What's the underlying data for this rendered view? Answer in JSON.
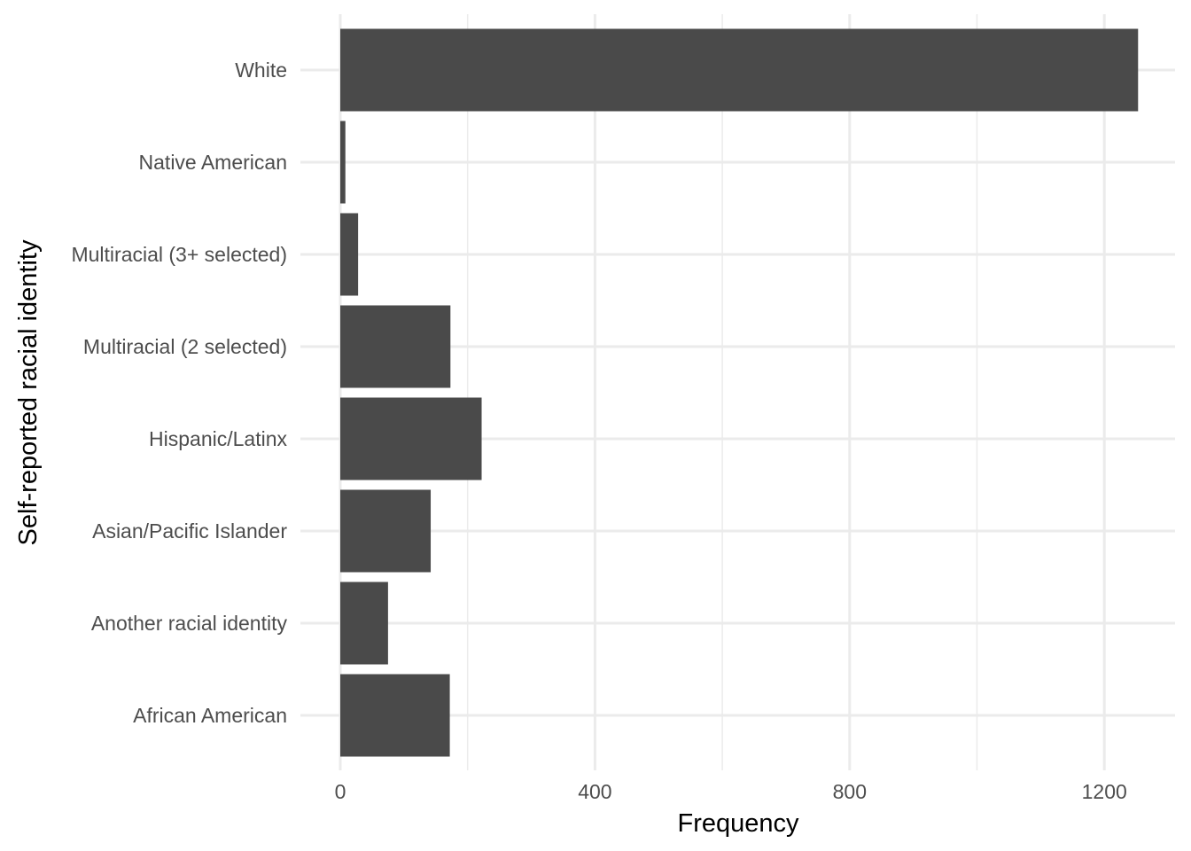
{
  "chart_data": {
    "type": "bar",
    "orientation": "horizontal",
    "title": "",
    "xlabel": "Frequency",
    "ylabel": "Self-reported racial identity",
    "categories": [
      "African American",
      "Another racial identity",
      "Asian/Pacific Islander",
      "Hispanic/Latinx",
      "Multiracial (2 selected)",
      "Multiracial (3+ selected)",
      "Native American",
      "White"
    ],
    "values": [
      172,
      75,
      142,
      222,
      173,
      28,
      8,
      1253
    ],
    "xlim": [
      0,
      1313
    ],
    "x_ticks": [
      0,
      400,
      800,
      1200
    ],
    "x_tick_labels": [
      "0",
      "400",
      "800",
      "1200"
    ],
    "x_minor_ticks": [
      200,
      600,
      1000
    ],
    "grid": true,
    "legend": "none",
    "colors": {
      "bar": "#4a4a4a",
      "grid": "#ebebeb",
      "tick_text": "#4d4d4d",
      "axis_title": "#000000",
      "background": "#ffffff"
    }
  }
}
